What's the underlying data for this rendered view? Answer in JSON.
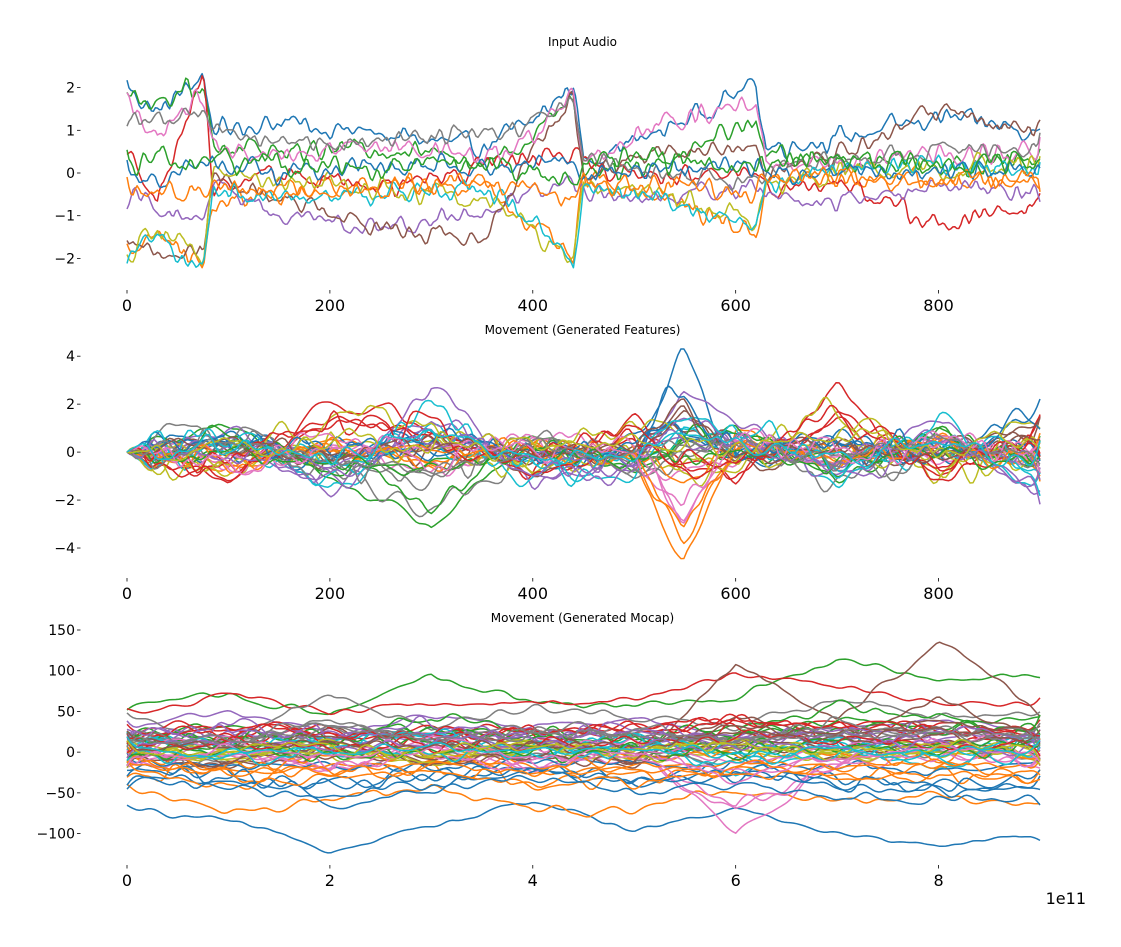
{
  "palette": [
    "#1f77b4",
    "#ff7f0e",
    "#2ca02c",
    "#d62728",
    "#9467bd",
    "#8c564b",
    "#e377c2",
    "#7f7f7f",
    "#bcbd22",
    "#17becf"
  ],
  "chart_data": [
    {
      "type": "line",
      "title": "Input Audio",
      "xlabel": "",
      "ylabel": "",
      "xlim": [
        0,
        900
      ],
      "ylim": [
        -2.6,
        2.6
      ],
      "x_ticks": [
        0,
        200,
        400,
        600,
        800
      ],
      "x_tick_labels": [
        "0",
        "200",
        "400",
        "600",
        "800"
      ],
      "y_ticks": [
        2,
        1,
        0,
        -1,
        -2
      ],
      "y_tick_labels": [
        "2",
        "1",
        "0",
        "−1",
        "−2"
      ],
      "grid": false,
      "legend": "none",
      "n_series": 13,
      "series_style": "noisy multivariate audio features, frames 0–900",
      "series": [
        {
          "x": [
            0,
            30,
            75,
            85,
            150,
            250,
            350,
            400,
            440,
            450,
            520,
            620,
            630,
            700,
            800,
            900
          ],
          "values": [
            2.0,
            1.4,
            2.3,
            1.0,
            1.2,
            0.9,
            0.6,
            1.2,
            2.1,
            0.3,
            0.9,
            2.1,
            0.6,
            0.8,
            1.3,
            1.0
          ]
        },
        {
          "x": [
            0,
            30,
            75,
            85,
            150,
            250,
            350,
            400,
            440,
            450,
            520,
            620,
            630,
            700,
            800,
            900
          ],
          "values": [
            -2.0,
            -1.2,
            -2.3,
            -0.8,
            -0.4,
            -0.3,
            -0.3,
            -1.2,
            -2.1,
            -0.1,
            -0.5,
            -1.4,
            -0.2,
            -0.1,
            -0.2,
            -0.1
          ]
        },
        {
          "x": [
            0,
            30,
            75,
            85,
            150,
            250,
            350,
            400,
            440,
            450,
            520,
            620,
            630,
            700,
            800,
            900
          ],
          "values": [
            1.8,
            1.7,
            2.0,
            0.7,
            0.5,
            0.6,
            0.3,
            0.8,
            1.9,
            0.1,
            0.2,
            1.3,
            0.4,
            0.3,
            0.2,
            0.3
          ]
        },
        {
          "x": [
            0,
            30,
            75,
            85,
            150,
            250,
            350,
            400,
            440,
            450,
            520,
            620,
            630,
            700,
            800,
            900
          ],
          "values": [
            0.5,
            -0.6,
            2.3,
            -0.3,
            0.0,
            -0.4,
            0.2,
            0.4,
            0.5,
            0.2,
            -0.1,
            0.0,
            -0.3,
            -0.2,
            -1.2,
            -0.8
          ]
        },
        {
          "x": [
            0,
            30,
            75,
            85,
            150,
            250,
            350,
            400,
            440,
            450,
            520,
            620,
            630,
            700,
            800,
            900
          ],
          "values": [
            -0.5,
            -0.8,
            -1.2,
            -0.2,
            -1.0,
            -1.3,
            -0.9,
            -0.5,
            -0.2,
            -0.4,
            -0.6,
            -0.3,
            -0.5,
            -0.7,
            -0.3,
            -0.5
          ]
        },
        {
          "x": [
            0,
            30,
            75,
            85,
            150,
            250,
            350,
            400,
            440,
            450,
            520,
            620,
            630,
            700,
            800,
            900
          ],
          "values": [
            -1.4,
            -2.0,
            -1.8,
            0.0,
            -0.6,
            -1.3,
            -1.5,
            0.4,
            1.9,
            0.0,
            0.5,
            0.6,
            0.0,
            0.4,
            1.5,
            0.9
          ]
        },
        {
          "x": [
            0,
            30,
            75,
            85,
            150,
            250,
            350,
            400,
            440,
            450,
            520,
            620,
            630,
            700,
            800,
            900
          ],
          "values": [
            1.6,
            0.8,
            1.9,
            0.5,
            0.4,
            0.7,
            0.4,
            0.9,
            1.8,
            0.3,
            1.1,
            1.6,
            0.3,
            0.2,
            0.4,
            0.5
          ]
        },
        {
          "x": [
            0,
            30,
            75,
            85,
            150,
            250,
            350,
            400,
            440,
            450,
            520,
            620,
            630,
            700,
            800,
            900
          ],
          "values": [
            1.3,
            1.2,
            1.3,
            1.2,
            0.6,
            0.8,
            0.9,
            1.2,
            1.6,
            0.3,
            0.0,
            -0.2,
            0.1,
            0.3,
            0.5,
            0.6
          ]
        },
        {
          "x": [
            0,
            30,
            75,
            85,
            150,
            250,
            350,
            400,
            440,
            450,
            520,
            620,
            630,
            700,
            800,
            900
          ],
          "values": [
            -1.9,
            -1.3,
            -1.9,
            -0.1,
            -0.2,
            -0.4,
            -0.6,
            -1.3,
            -2.0,
            -0.2,
            -0.4,
            -1.2,
            -0.3,
            0.0,
            0.1,
            0.2
          ]
        },
        {
          "x": [
            0,
            30,
            75,
            85,
            150,
            250,
            350,
            400,
            440,
            450,
            520,
            620,
            630,
            700,
            800,
            900
          ],
          "values": [
            -1.9,
            -1.4,
            -2.2,
            -0.3,
            -0.6,
            -0.5,
            -0.3,
            -1.1,
            -2.1,
            -0.3,
            -0.6,
            -1.3,
            -0.3,
            0.1,
            0.2,
            0.0
          ]
        },
        {
          "x": [
            0,
            30,
            75,
            85,
            150,
            250,
            350,
            400,
            440,
            450,
            520,
            620,
            630,
            700,
            800,
            900
          ],
          "values": [
            0.1,
            -0.2,
            0.3,
            0.1,
            0.0,
            0.2,
            0.1,
            0.2,
            0.3,
            0.0,
            0.1,
            0.2,
            0.0,
            0.1,
            0.0,
            0.1
          ]
        },
        {
          "x": [
            0,
            30,
            75,
            85,
            150,
            250,
            350,
            400,
            440,
            450,
            520,
            620,
            630,
            700,
            800,
            900
          ],
          "values": [
            -0.3,
            -0.5,
            -0.4,
            -0.2,
            -0.5,
            -0.3,
            -0.2,
            -0.4,
            -0.6,
            -0.2,
            -0.3,
            -0.4,
            -0.1,
            0.0,
            -0.2,
            -0.1
          ]
        },
        {
          "x": [
            0,
            30,
            75,
            85,
            150,
            250,
            350,
            400,
            440,
            450,
            520,
            620,
            630,
            700,
            800,
            900
          ],
          "values": [
            0.2,
            0.4,
            0.1,
            0.3,
            0.2,
            0.1,
            0.3,
            0.0,
            -0.2,
            0.2,
            0.3,
            0.1,
            0.2,
            0.4,
            0.3,
            0.2
          ]
        }
      ]
    },
    {
      "type": "line",
      "title": "Movement (Generated Features)",
      "xlabel": "",
      "ylabel": "",
      "xlim": [
        0,
        900
      ],
      "ylim": [
        -5.0,
        4.3
      ],
      "x_ticks": [
        0,
        200,
        400,
        600,
        800
      ],
      "x_tick_labels": [
        "0",
        "200",
        "400",
        "600",
        "800"
      ],
      "y_ticks": [
        4,
        2,
        0,
        -2,
        -4
      ],
      "y_tick_labels": [
        "4",
        "2",
        "0",
        "−2",
        "−4"
      ],
      "grid": false,
      "legend": "none",
      "n_series": 40,
      "series_style": "smooth oscillating generated features, all series start near 0; notable spikes near x=548 (to 4.1 and -4.8) and x=290 (to -3.0)",
      "series": [
        {
          "x": [
            0,
            100,
            200,
            300,
            400,
            500,
            548,
            600,
            700,
            800,
            900
          ],
          "values": [
            0,
            0.6,
            -0.4,
            0.8,
            -0.5,
            0.3,
            4.1,
            -0.6,
            0.5,
            -0.4,
            2.0
          ]
        },
        {
          "x": [
            0,
            100,
            200,
            300,
            400,
            500,
            548,
            600,
            700,
            800,
            900
          ],
          "values": [
            0,
            -0.7,
            0.5,
            -0.6,
            0.4,
            -0.3,
            -4.8,
            0.7,
            -0.4,
            0.6,
            -0.5
          ]
        },
        {
          "x": [
            0,
            100,
            200,
            300,
            400,
            500,
            548,
            600,
            700,
            800,
            900
          ],
          "values": [
            0,
            1.2,
            -1.0,
            -3.0,
            0.8,
            -1.0,
            0.5,
            1.0,
            -1.2,
            0.9,
            -0.8
          ]
        },
        {
          "x": [
            0,
            100,
            200,
            300,
            400,
            500,
            548,
            600,
            700,
            800,
            900
          ],
          "values": [
            0,
            -1.3,
            2.2,
            1.2,
            -0.9,
            1.3,
            -0.6,
            -1.1,
            2.6,
            -1.2,
            1.1
          ]
        },
        {
          "x": [
            0,
            100,
            200,
            300,
            400,
            500,
            548,
            600,
            700,
            800,
            900
          ],
          "values": [
            0,
            0.9,
            -1.8,
            2.7,
            -1.3,
            -0.4,
            2.6,
            1.3,
            -0.9,
            1.5,
            -2.0
          ]
        }
      ]
    },
    {
      "type": "line",
      "title": "Movement (Generated Mocap)",
      "xlabel": "",
      "ylabel": "",
      "xlim": [
        0,
        900000000000.0
      ],
      "ylim": [
        -130,
        150
      ],
      "x_ticks": [
        0,
        200000000000.0,
        400000000000.0,
        600000000000.0,
        800000000000.0
      ],
      "x_tick_labels": [
        "0",
        "2",
        "4",
        "6",
        "8"
      ],
      "x_offset_label": "1e11",
      "y_ticks": [
        150,
        100,
        50,
        0,
        -50,
        -100
      ],
      "y_tick_labels": [
        "150",
        "100",
        "50",
        "0",
        "−50",
        "−100"
      ],
      "grid": false,
      "legend": "none",
      "n_series": 60,
      "series_style": "smooth mocap trajectories; lowest series near -100, highest near 140 at x≈8.5e11",
      "series": [
        {
          "x": [
            0,
            100000000000.0,
            200000000000.0,
            300000000000.0,
            400000000000.0,
            500000000000.0,
            600000000000.0,
            700000000000.0,
            800000000000.0,
            900000000000.0
          ],
          "values": [
            -70,
            -85,
            -120,
            -90,
            -60,
            -95,
            -70,
            -100,
            -115,
            -100
          ]
        },
        {
          "x": [
            0,
            100000000000.0,
            200000000000.0,
            300000000000.0,
            400000000000.0,
            500000000000.0,
            600000000000.0,
            700000000000.0,
            800000000000.0,
            900000000000.0
          ],
          "values": [
            -45,
            -75,
            -60,
            -40,
            -75,
            -70,
            -45,
            -60,
            -50,
            -70
          ]
        },
        {
          "x": [
            0,
            100000000000.0,
            200000000000.0,
            300000000000.0,
            400000000000.0,
            500000000000.0,
            600000000000.0,
            700000000000.0,
            800000000000.0,
            900000000000.0
          ],
          "values": [
            60,
            70,
            45,
            95,
            60,
            55,
            65,
            115,
            90,
            95
          ]
        },
        {
          "x": [
            0,
            100000000000.0,
            200000000000.0,
            300000000000.0,
            400000000000.0,
            500000000000.0,
            600000000000.0,
            700000000000.0,
            800000000000.0,
            900000000000.0
          ],
          "values": [
            45,
            70,
            50,
            60,
            60,
            65,
            95,
            80,
            60,
            60
          ]
        },
        {
          "x": [
            0,
            100000000000.0,
            200000000000.0,
            300000000000.0,
            400000000000.0,
            500000000000.0,
            600000000000.0,
            700000000000.0,
            800000000000.0,
            900000000000.0
          ],
          "values": [
            30,
            50,
            25,
            45,
            30,
            40,
            20,
            30,
            40,
            25
          ]
        },
        {
          "x": [
            0,
            100000000000.0,
            200000000000.0,
            300000000000.0,
            400000000000.0,
            500000000000.0,
            600000000000.0,
            700000000000.0,
            800000000000.0,
            900000000000.0
          ],
          "values": [
            10,
            -20,
            30,
            -10,
            20,
            -15,
            110,
            40,
            135,
            50
          ]
        },
        {
          "x": [
            0,
            100000000000.0,
            200000000000.0,
            300000000000.0,
            400000000000.0,
            500000000000.0,
            600000000000.0,
            700000000000.0,
            800000000000.0,
            900000000000.0
          ],
          "values": [
            -10,
            10,
            -25,
            15,
            -20,
            10,
            -100,
            -10,
            15,
            -20
          ]
        },
        {
          "x": [
            0,
            100000000000.0,
            200000000000.0,
            300000000000.0,
            400000000000.0,
            500000000000.0,
            600000000000.0,
            700000000000.0,
            800000000000.0,
            900000000000.0
          ],
          "values": [
            40,
            20,
            70,
            30,
            55,
            45,
            30,
            60,
            45,
            50
          ]
        },
        {
          "x": [
            0,
            100000000000.0,
            200000000000.0,
            300000000000.0,
            400000000000.0,
            500000000000.0,
            600000000000.0,
            700000000000.0,
            800000000000.0,
            900000000000.0
          ],
          "values": [
            0,
            -10,
            5,
            -15,
            10,
            -5,
            15,
            -10,
            5,
            0
          ]
        },
        {
          "x": [
            0,
            100000000000.0,
            200000000000.0,
            300000000000.0,
            400000000000.0,
            500000000000.0,
            600000000000.0,
            700000000000.0,
            800000000000.0,
            900000000000.0
          ],
          "values": [
            20,
            -5,
            15,
            25,
            -10,
            20,
            -30,
            10,
            -20,
            15
          ]
        }
      ]
    }
  ]
}
